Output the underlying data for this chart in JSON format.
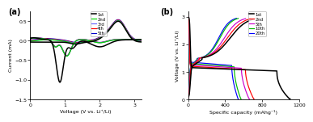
{
  "panel_a": {
    "title": "(a)",
    "xlabel": "Voltage (V vs. Li⁺/Li)",
    "ylabel": "Current (mA)",
    "xlim": [
      0,
      3.2
    ],
    "ylim": [
      -1.5,
      0.75
    ],
    "yticks": [
      -1.5,
      -1.0,
      -0.5,
      0.0,
      0.5
    ],
    "xticks": [
      0,
      1,
      2,
      3
    ],
    "legend": [
      "1st",
      "2nd",
      "3rd",
      "4th",
      "5th"
    ],
    "colors": [
      "black",
      "#00dd00",
      "#6666ff",
      "red",
      "#0000cc"
    ]
  },
  "panel_b": {
    "title": "(b)",
    "xlabel": "Specific capacity (mAhg⁻¹)",
    "ylabel": "Voltage (V vs. Li⁺/Li)",
    "xlim": [
      0,
      1200
    ],
    "ylim": [
      0,
      3.2
    ],
    "yticks": [
      0,
      1,
      2,
      3
    ],
    "xticks": [
      0,
      400,
      800,
      1200
    ],
    "legend": [
      "1st",
      "2nd",
      "5th",
      "10th",
      "20th"
    ],
    "colors": [
      "black",
      "red",
      "#cc00cc",
      "#00bb00",
      "blue"
    ]
  }
}
